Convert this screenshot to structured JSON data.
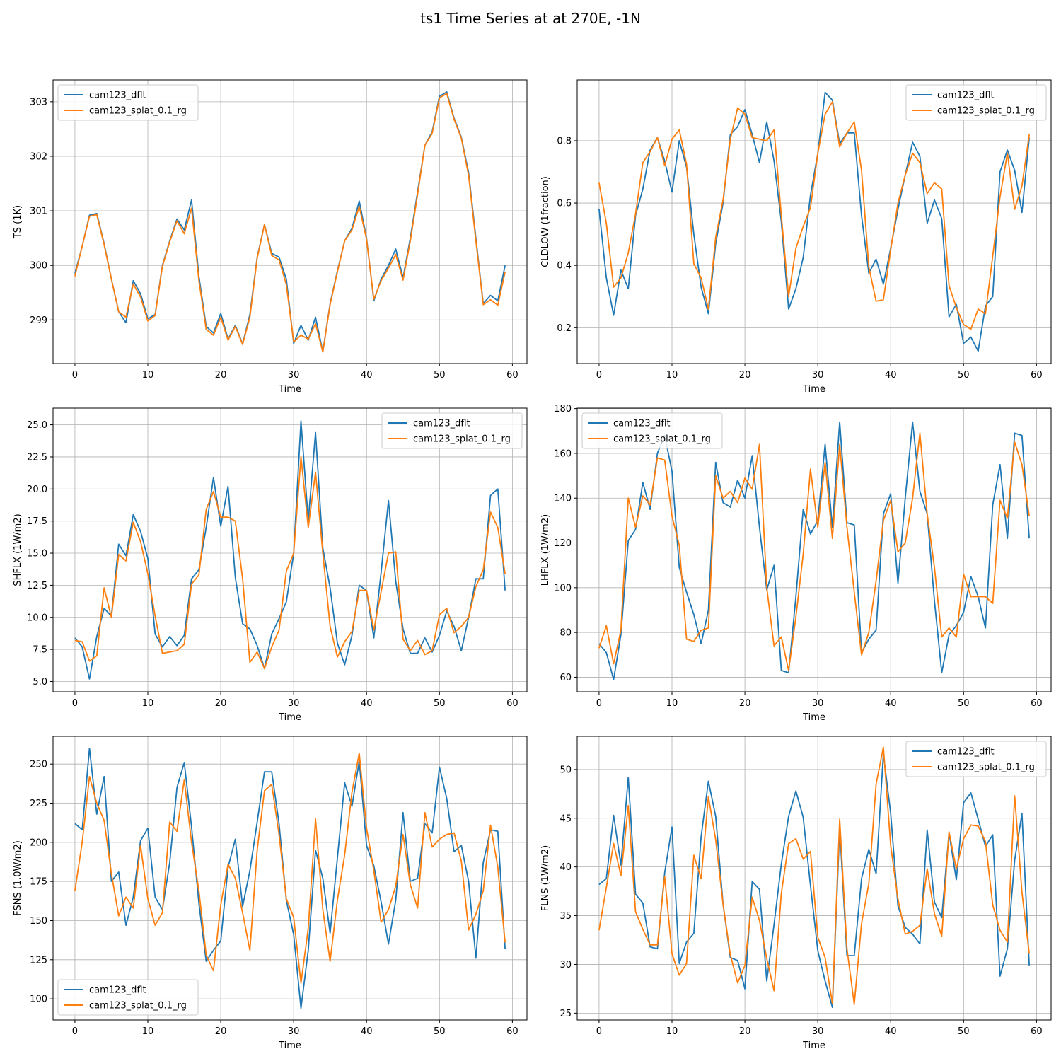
{
  "title": "ts1 Time Series at at 270E, -1N",
  "colors": {
    "cam123_dflt": "#1f77b4",
    "cam123_splat_0.1_rg": "#ff7f0e",
    "grid": "#b0b0b0"
  },
  "chart_data": [
    {
      "type": "line",
      "xlabel": "Time",
      "ylabel": "TS (1K)",
      "xlim": [
        -3,
        62
      ],
      "ylim": [
        298.2,
        303.4
      ],
      "xticks": [
        0,
        10,
        20,
        30,
        40,
        50,
        60
      ],
      "yticks": [
        299,
        300,
        301,
        302,
        303
      ],
      "ytick_labels": [
        "299",
        "300",
        "301",
        "302",
        "303"
      ],
      "grid": true,
      "legend": "top-left",
      "series": [
        {
          "name": "cam123_dflt",
          "values": [
            299.85,
            300.35,
            300.92,
            300.95,
            300.4,
            299.75,
            299.15,
            298.95,
            299.72,
            299.48,
            299.02,
            299.1,
            300.0,
            300.45,
            300.85,
            300.65,
            301.2,
            299.8,
            298.88,
            298.76,
            299.12,
            298.65,
            298.9,
            298.56,
            299.1,
            300.15,
            300.75,
            300.22,
            300.15,
            299.75,
            298.57,
            298.9,
            298.63,
            299.05,
            298.42,
            299.3,
            299.9,
            300.45,
            300.68,
            301.18,
            300.5,
            299.35,
            299.75,
            300.0,
            300.3,
            299.77,
            300.5,
            301.35,
            302.2,
            302.45,
            303.1,
            303.18,
            302.7,
            302.35,
            301.7,
            300.5,
            299.3,
            299.45,
            299.35,
            300.0
          ]
        },
        {
          "name": "cam123_splat_0.1_rg",
          "values": [
            299.8,
            300.35,
            300.9,
            300.93,
            300.38,
            299.75,
            299.15,
            299.05,
            299.66,
            299.42,
            298.98,
            299.08,
            299.98,
            300.43,
            300.82,
            300.58,
            301.05,
            299.72,
            298.83,
            298.72,
            299.05,
            298.63,
            298.88,
            298.55,
            299.05,
            300.13,
            300.75,
            300.18,
            300.1,
            299.65,
            298.6,
            298.72,
            298.65,
            298.93,
            298.41,
            299.28,
            299.88,
            300.45,
            300.65,
            301.08,
            300.48,
            299.38,
            299.72,
            299.95,
            300.2,
            299.73,
            300.45,
            301.3,
            302.2,
            302.42,
            303.07,
            303.15,
            302.68,
            302.33,
            301.65,
            300.45,
            299.28,
            299.37,
            299.27,
            299.88
          ]
        }
      ]
    },
    {
      "type": "line",
      "xlabel": "Time",
      "ylabel": "CLDLOW (1fraction)",
      "xlim": [
        -3,
        62
      ],
      "ylim": [
        0.085,
        0.995
      ],
      "xticks": [
        0,
        10,
        20,
        30,
        40,
        50,
        60
      ],
      "yticks": [
        0.2,
        0.4,
        0.6,
        0.8
      ],
      "ytick_labels": [
        "0.2",
        "0.4",
        "0.6",
        "0.8"
      ],
      "grid": true,
      "legend": "top-right",
      "series": [
        {
          "name": "cam123_dflt",
          "values": [
            0.58,
            0.36,
            0.24,
            0.385,
            0.325,
            0.56,
            0.645,
            0.77,
            0.81,
            0.735,
            0.635,
            0.8,
            0.715,
            0.5,
            0.33,
            0.245,
            0.47,
            0.6,
            0.82,
            0.845,
            0.9,
            0.82,
            0.73,
            0.86,
            0.735,
            0.54,
            0.26,
            0.325,
            0.425,
            0.625,
            0.76,
            0.955,
            0.93,
            0.79,
            0.825,
            0.825,
            0.56,
            0.375,
            0.42,
            0.34,
            0.455,
            0.58,
            0.69,
            0.795,
            0.75,
            0.535,
            0.61,
            0.55,
            0.235,
            0.275,
            0.15,
            0.17,
            0.125,
            0.27,
            0.3,
            0.7,
            0.77,
            0.705,
            0.57,
            0.81
          ]
        },
        {
          "name": "cam123_splat_0.1_rg",
          "values": [
            0.665,
            0.535,
            0.33,
            0.36,
            0.44,
            0.565,
            0.73,
            0.765,
            0.81,
            0.72,
            0.805,
            0.835,
            0.725,
            0.405,
            0.36,
            0.26,
            0.49,
            0.61,
            0.805,
            0.905,
            0.885,
            0.81,
            0.805,
            0.8,
            0.835,
            0.56,
            0.3,
            0.455,
            0.525,
            0.585,
            0.76,
            0.885,
            0.925,
            0.78,
            0.825,
            0.86,
            0.705,
            0.395,
            0.285,
            0.29,
            0.45,
            0.6,
            0.69,
            0.76,
            0.73,
            0.63,
            0.665,
            0.645,
            0.335,
            0.265,
            0.21,
            0.195,
            0.26,
            0.245,
            0.43,
            0.62,
            0.76,
            0.58,
            0.655,
            0.82
          ]
        }
      ]
    },
    {
      "type": "line",
      "xlabel": "Time",
      "ylabel": "SHFLX (1W/m2)",
      "xlim": [
        -3,
        62
      ],
      "ylim": [
        4.2,
        26.3
      ],
      "xticks": [
        0,
        10,
        20,
        30,
        40,
        50,
        60
      ],
      "yticks": [
        5.0,
        7.5,
        10.0,
        12.5,
        15.0,
        17.5,
        20.0,
        22.5,
        25.0
      ],
      "ytick_labels": [
        "5.0",
        "7.5",
        "10.0",
        "12.5",
        "15.0",
        "17.5",
        "20.0",
        "22.5",
        "25.0"
      ],
      "grid": true,
      "legend": "top-right",
      "series": [
        {
          "name": "cam123_dflt",
          "values": [
            8.4,
            7.7,
            5.2,
            8.5,
            10.7,
            10.1,
            15.7,
            14.8,
            18.0,
            16.7,
            14.6,
            8.7,
            7.7,
            8.5,
            7.8,
            8.6,
            13.0,
            13.7,
            17.0,
            20.9,
            17.1,
            20.2,
            13.1,
            9.5,
            9.1,
            7.8,
            6.0,
            8.7,
            9.9,
            11.2,
            15.0,
            25.3,
            17.5,
            24.4,
            15.4,
            12.3,
            8.0,
            6.3,
            8.6,
            12.5,
            12.1,
            8.4,
            13.5,
            19.1,
            12.8,
            9.1,
            7.2,
            7.2,
            8.4,
            7.3,
            8.6,
            10.5,
            9.3,
            7.4,
            10.0,
            13.0,
            13.0,
            19.5,
            20.0,
            12.1
          ]
        },
        {
          "name": "cam123_splat_0.1_rg",
          "values": [
            8.2,
            8.1,
            6.6,
            7.0,
            12.3,
            10.0,
            14.9,
            14.4,
            17.4,
            15.9,
            13.4,
            10.1,
            7.2,
            7.3,
            7.4,
            7.9,
            12.6,
            13.3,
            18.4,
            19.8,
            17.8,
            17.8,
            17.5,
            13.0,
            6.5,
            7.3,
            6.0,
            7.7,
            9.0,
            13.6,
            15.0,
            22.5,
            17.0,
            21.3,
            15.0,
            9.3,
            6.9,
            8.1,
            8.9,
            12.1,
            12.1,
            9.0,
            12.0,
            15.0,
            15.1,
            8.3,
            7.4,
            8.2,
            7.1,
            7.4,
            10.2,
            10.7,
            8.8,
            9.3,
            10.0,
            12.4,
            13.7,
            18.2,
            17.0,
            13.4
          ]
        }
      ]
    },
    {
      "type": "line",
      "xlabel": "Time",
      "ylabel": "LHFLX (1W/m2)",
      "xlim": [
        -3,
        62
      ],
      "ylim": [
        53.5,
        180.2
      ],
      "xticks": [
        0,
        10,
        20,
        30,
        40,
        50,
        60
      ],
      "yticks": [
        60,
        80,
        100,
        120,
        140,
        160,
        180
      ],
      "ytick_labels": [
        "60",
        "80",
        "100",
        "120",
        "140",
        "160",
        "180"
      ],
      "grid": true,
      "legend": "top-left",
      "series": [
        {
          "name": "cam123_dflt",
          "values": [
            75,
            71,
            59,
            79,
            121,
            126,
            147,
            135,
            160,
            168,
            152,
            109,
            98,
            88,
            75,
            90,
            156,
            138,
            136,
            148,
            140,
            159,
            127,
            99,
            110,
            63,
            62,
            96,
            135,
            124,
            130,
            164,
            127,
            174,
            129,
            128,
            71,
            77,
            81,
            133,
            142,
            102,
            140,
            174,
            143,
            133,
            94,
            62,
            79,
            83,
            89,
            105,
            96,
            82,
            137,
            155,
            122,
            169,
            168,
            122
          ]
        },
        {
          "name": "cam123_splat_0.1_rg",
          "values": [
            73,
            83,
            66,
            81,
            140,
            127,
            141,
            137,
            158,
            157,
            132,
            119,
            77,
            76,
            81,
            82,
            150,
            140,
            143,
            138,
            149,
            144,
            164,
            100,
            74,
            78,
            63,
            87,
            115,
            153,
            127,
            156,
            122,
            164,
            127,
            98,
            70,
            80,
            103,
            130,
            139,
            116,
            120,
            140,
            169,
            133,
            109,
            78,
            82,
            78,
            106,
            96,
            96,
            96,
            93,
            139,
            131,
            165,
            155,
            132
          ]
        }
      ]
    },
    {
      "type": "line",
      "xlabel": "Time",
      "ylabel": "FSNS (1.0W/m2)",
      "xlim": [
        -3,
        62
      ],
      "ylim": [
        86.5,
        267.7
      ],
      "xticks": [
        0,
        10,
        20,
        30,
        40,
        50,
        60
      ],
      "yticks": [
        100,
        125,
        150,
        175,
        200,
        225,
        250
      ],
      "ytick_labels": [
        "100",
        "125",
        "150",
        "175",
        "200",
        "225",
        "250"
      ],
      "grid": true,
      "legend": "bottom-left",
      "series": [
        {
          "name": "cam123_dflt",
          "values": [
            212,
            208,
            260,
            218,
            242,
            175,
            181,
            147,
            165,
            201,
            209,
            165,
            157,
            187,
            235,
            251,
            210,
            161,
            124,
            131,
            137,
            184,
            202,
            159,
            182,
            213,
            245,
            245,
            212,
            163,
            141,
            94,
            131,
            195,
            177,
            142,
            190,
            238,
            223,
            252,
            198,
            185,
            162,
            135,
            163,
            219,
            175,
            177,
            212,
            206,
            248,
            228,
            194,
            198,
            175,
            126,
            187,
            208,
            207,
            132
          ]
        },
        {
          "name": "cam123_splat_0.1_rg",
          "values": [
            169,
            200,
            242,
            225,
            214,
            180,
            153,
            165,
            158,
            198,
            164,
            147,
            155,
            213,
            207,
            240,
            200,
            169,
            128,
            118,
            160,
            186,
            177,
            155,
            131,
            195,
            233,
            237,
            205,
            164,
            152,
            110,
            145,
            215,
            157,
            124,
            163,
            192,
            232,
            257,
            209,
            182,
            149,
            157,
            172,
            205,
            173,
            158,
            219,
            197,
            202,
            205,
            206,
            188,
            144,
            154,
            169,
            211,
            184,
            136
          ]
        }
      ]
    },
    {
      "type": "line",
      "xlabel": "Time",
      "ylabel": "FLNS (1W/m2)",
      "xlim": [
        -3,
        62
      ],
      "ylim": [
        24.3,
        53.4
      ],
      "xticks": [
        0,
        10,
        20,
        30,
        40,
        50,
        60
      ],
      "yticks": [
        25,
        30,
        35,
        40,
        45,
        50
      ],
      "ytick_labels": [
        "25",
        "30",
        "35",
        "40",
        "45",
        "50"
      ],
      "grid": true,
      "legend": "top-right",
      "series": [
        {
          "name": "cam123_dflt",
          "values": [
            38.2,
            38.8,
            45.3,
            40.2,
            49.2,
            37.2,
            36.3,
            31.8,
            31.6,
            39.4,
            44.1,
            30.1,
            32.3,
            33.2,
            43.1,
            48.8,
            45.2,
            36.2,
            30.7,
            30.4,
            27.5,
            38.5,
            37.7,
            28.3,
            34.1,
            40.3,
            45.2,
            47.8,
            45.1,
            38.1,
            31.4,
            28.3,
            25.6,
            44.0,
            30.9,
            30.9,
            38.8,
            41.8,
            39.3,
            51.6,
            45.5,
            36.0,
            33.8,
            33.1,
            32.1,
            43.8,
            36.4,
            34.8,
            43.5,
            38.7,
            46.6,
            47.6,
            44.9,
            42.1,
            43.3,
            28.8,
            31.6,
            40.7,
            45.5,
            29.9
          ]
        },
        {
          "name": "cam123_splat_0.1_rg",
          "values": [
            33.5,
            37.9,
            42.4,
            39.1,
            46.3,
            35.4,
            33.6,
            32.0,
            32.0,
            39.0,
            31.1,
            28.9,
            30.1,
            41.2,
            38.8,
            47.2,
            42.8,
            36.2,
            31.0,
            28.1,
            29.9,
            36.9,
            34.5,
            30.6,
            27.3,
            37.3,
            42.4,
            42.9,
            40.8,
            41.6,
            32.8,
            30.7,
            26.0,
            44.9,
            31.6,
            25.9,
            34.2,
            38.3,
            48.5,
            52.3,
            42.2,
            36.7,
            33.1,
            33.4,
            34.0,
            39.8,
            35.2,
            32.9,
            43.6,
            39.8,
            42.9,
            44.3,
            44.2,
            42.6,
            36.1,
            33.5,
            32.3,
            47.3,
            37.4,
            31.1
          ]
        }
      ]
    }
  ]
}
